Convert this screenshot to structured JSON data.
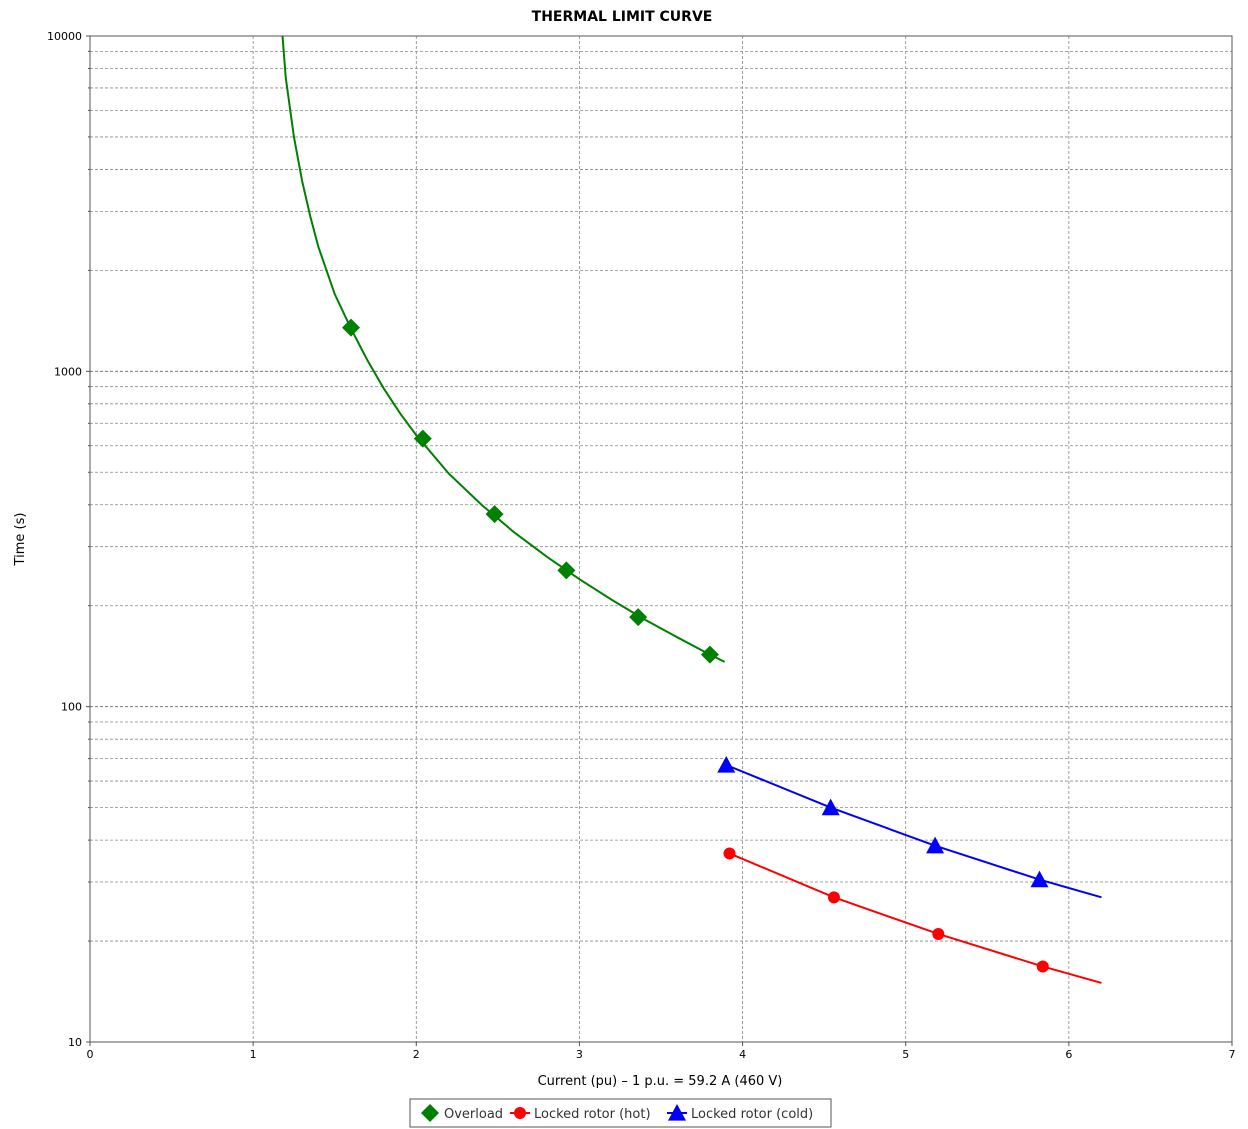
{
  "chart_data": {
    "type": "line",
    "title": "THERMAL LIMIT CURVE",
    "xlabel": "Current (pu) – 1 p.u. = 59.2 A (460 V)",
    "ylabel": "Time (s)",
    "xlim": [
      0,
      7
    ],
    "ylim": [
      10,
      10000
    ],
    "y_scale": "log",
    "x_ticks": [
      "0",
      "1",
      "2",
      "3",
      "4",
      "5",
      "6",
      "7"
    ],
    "y_ticks": [
      "10",
      "100",
      "1000",
      "10000"
    ],
    "grid": true,
    "legend_position": "bottom-center",
    "series": [
      {
        "name": "Overload",
        "color": "#008000",
        "marker": "diamond",
        "curve_x": [
          1.18,
          1.2,
          1.25,
          1.3,
          1.35,
          1.4,
          1.5,
          1.6,
          1.7,
          1.8,
          1.9,
          2.0,
          2.2,
          2.4,
          2.6,
          2.8,
          3.0,
          3.2,
          3.4,
          3.6,
          3.8,
          3.89
        ],
        "curve_y": [
          10000,
          7500,
          5000,
          3700,
          2900,
          2350,
          1700,
          1340,
          1080,
          890,
          750,
          645,
          495,
          400,
          331,
          280,
          240,
          208,
          182,
          161,
          143,
          136
        ],
        "marker_x": [
          1.6,
          2.04,
          2.48,
          2.92,
          3.36,
          3.8
        ],
        "marker_y": [
          1350,
          630,
          375,
          255,
          185,
          143
        ]
      },
      {
        "name": "Locked rotor (hot)",
        "color": "#ff0000",
        "marker": "circle",
        "curve_x": [
          3.92,
          4.56,
          5.2,
          5.84,
          6.2
        ],
        "curve_y": [
          36.5,
          27,
          21,
          16.8,
          15
        ],
        "marker_x": [
          3.92,
          4.56,
          5.2,
          5.84
        ],
        "marker_y": [
          36.5,
          27,
          21,
          16.8
        ]
      },
      {
        "name": "Locked rotor (cold)",
        "color": "#0000ff",
        "marker": "triangle",
        "curve_x": [
          3.9,
          4.54,
          5.18,
          5.82,
          6.2
        ],
        "curve_y": [
          67,
          50,
          38.5,
          30.5,
          27
        ],
        "marker_x": [
          3.9,
          4.54,
          5.18,
          5.82
        ],
        "marker_y": [
          67,
          50,
          38.5,
          30.5
        ]
      }
    ]
  }
}
